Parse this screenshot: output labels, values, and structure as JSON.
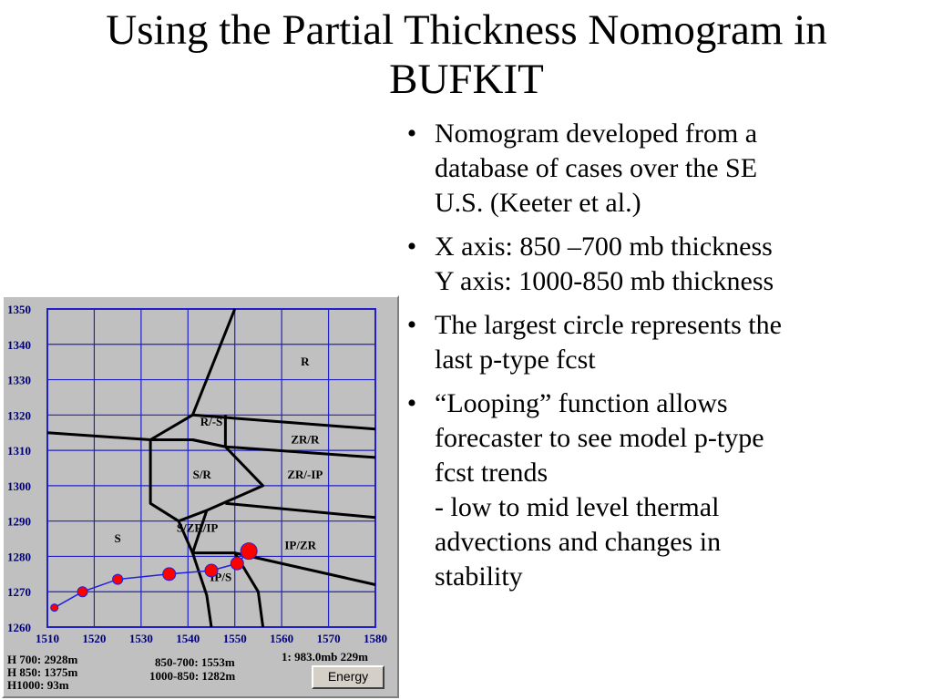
{
  "slide": {
    "title_line1": "Using the Partial Thickness Nomogram in",
    "title_line2": "BUFKIT",
    "bullet_glyph": "•",
    "bullets": [
      {
        "lines": [
          "Nomogram developed from a",
          "database of cases over the SE",
          "U.S. (Keeter et al.)"
        ]
      },
      {
        "lines": [
          "X axis: 850 –700 mb thickness",
          "Y axis: 1000-850 mb thickness"
        ]
      },
      {
        "lines": [
          "The largest circle represents the",
          "last p-type fcst"
        ]
      },
      {
        "lines": [
          "“Looping” function allows",
          "forecaster to see model p-type",
          "fcst trends",
          "- low to mid level thermal",
          "advections and changes in",
          "stability"
        ]
      }
    ]
  },
  "nomogram": {
    "colors": {
      "plot_background": "#c0c0c0",
      "grid": "#2020c8",
      "tick_text": "#00007a",
      "boundary": "#000000",
      "trend_line": "#2020e0",
      "points": "#ff0000"
    },
    "readout": {
      "h700": "H 700:  2928m",
      "h850": "H 850:  1375m",
      "h1000": "H1000:   93m",
      "thick_850_700": "850-700: 1553m",
      "thick_1000_850": "1000-850: 1282m",
      "level": "1: 983.0mb 229m"
    },
    "energy_button_label": "Energy"
  },
  "chart_data": {
    "type": "scatter",
    "title": "",
    "xlabel": "",
    "ylabel": "",
    "xlim": [
      1510,
      1580
    ],
    "ylim": [
      1260,
      1350
    ],
    "grid": true,
    "x_ticks": [
      1510,
      1520,
      1530,
      1540,
      1550,
      1560,
      1570,
      1580
    ],
    "y_ticks": [
      1260,
      1270,
      1280,
      1290,
      1300,
      1310,
      1320,
      1330,
      1340,
      1350
    ],
    "boundaries": [
      [
        [
          1510,
          1315
        ],
        [
          1532,
          1313
        ],
        [
          1541,
          1313
        ],
        [
          1548,
          1311
        ],
        [
          1580,
          1308
        ]
      ],
      [
        [
          1541,
          1320
        ],
        [
          1580,
          1316
        ]
      ],
      [
        [
          1550,
          1350
        ],
        [
          1541,
          1320
        ],
        [
          1532,
          1313
        ],
        [
          1532,
          1295
        ],
        [
          1538,
          1290
        ],
        [
          1541,
          1281
        ],
        [
          1544,
          1269
        ],
        [
          1545,
          1260
        ]
      ],
      [
        [
          1541,
          1313
        ],
        [
          1548,
          1311
        ],
        [
          1556,
          1300
        ],
        [
          1544,
          1293
        ],
        [
          1538,
          1290
        ]
      ],
      [
        [
          1548,
          1311
        ],
        [
          1548,
          1320
        ]
      ],
      [
        [
          1548,
          1295
        ],
        [
          1580,
          1291
        ]
      ],
      [
        [
          1544,
          1293
        ],
        [
          1541,
          1281
        ],
        [
          1550,
          1281
        ],
        [
          1555,
          1270
        ],
        [
          1556,
          1260
        ]
      ],
      [
        [
          1550,
          1281
        ],
        [
          1580,
          1272
        ]
      ]
    ],
    "region_labels": [
      {
        "text": "R",
        "x": 1565,
        "y": 1334
      },
      {
        "text": "R/-S",
        "x": 1545,
        "y": 1317
      },
      {
        "text": "ZR/R",
        "x": 1565,
        "y": 1312
      },
      {
        "text": "S/R",
        "x": 1543,
        "y": 1302
      },
      {
        "text": "ZR/-IP",
        "x": 1565,
        "y": 1302
      },
      {
        "text": "S/ZR/IP",
        "x": 1542,
        "y": 1287
      },
      {
        "text": "S",
        "x": 1525,
        "y": 1284
      },
      {
        "text": "IP/ZR",
        "x": 1564,
        "y": 1282
      },
      {
        "text": "IP/S",
        "x": 1547,
        "y": 1273
      }
    ],
    "series": [
      {
        "points": [
          {
            "x": 1511.5,
            "y": 1265.5,
            "size": 1
          },
          {
            "x": 1517.5,
            "y": 1270,
            "size": 2
          },
          {
            "x": 1525,
            "y": 1273.5,
            "size": 2
          },
          {
            "x": 1536,
            "y": 1275,
            "size": 3
          },
          {
            "x": 1545,
            "y": 1276,
            "size": 3
          },
          {
            "x": 1550.5,
            "y": 1278,
            "size": 3
          },
          {
            "x": 1553,
            "y": 1281.5,
            "size": 4
          }
        ]
      }
    ]
  }
}
